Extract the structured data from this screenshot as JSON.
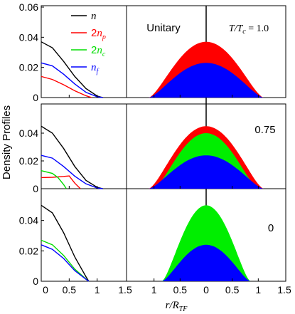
{
  "figure": {
    "ylabel": "Density Profiles",
    "xlabel": "r/R",
    "xlabel_sub": "TF",
    "panel_labels": {
      "top": "T/T",
      "top_sub": "c",
      "top_value": " = 1.0",
      "mid": "0.75",
      "bot": "0",
      "unitary": "Unitary"
    },
    "legend": [
      {
        "label": "n",
        "sub": "",
        "pre": "",
        "color": "#000000"
      },
      {
        "label": "n",
        "sub": "p",
        "pre": "2",
        "color": "#ff0000"
      },
      {
        "label": "n",
        "sub": "c",
        "pre": "2",
        "color": "#00dd00"
      },
      {
        "label": "n",
        "sub": "f",
        "pre": "",
        "color": "#0000ff"
      }
    ],
    "colors": {
      "n": "#000000",
      "np": "#ff0000",
      "nc": "#00ee00",
      "nf": "#0000ff"
    }
  },
  "chart_data": [
    {
      "type": "line",
      "panel": "left-top",
      "title": "T/Tc = 1.0",
      "xlim": [
        0,
        1.5
      ],
      "ylim": [
        0,
        0.06
      ],
      "xticks": [
        "0",
        "0.5",
        "1",
        "1.5"
      ],
      "yticks": [
        "0",
        "0.02",
        "0.04",
        "0.06"
      ],
      "series": [
        {
          "name": "n",
          "color": "#000000",
          "x": [
            0,
            0.2,
            0.4,
            0.6,
            0.8,
            1.0,
            1.1
          ],
          "y": [
            0.037,
            0.033,
            0.024,
            0.014,
            0.006,
            0.001,
            0
          ]
        },
        {
          "name": "2np",
          "color": "#ff0000",
          "x": [
            0,
            0.2,
            0.4,
            0.6,
            0.8,
            0.9
          ],
          "y": [
            0.014,
            0.012,
            0.0085,
            0.0045,
            0.0012,
            0
          ]
        },
        {
          "name": "nf",
          "color": "#0000ff",
          "x": [
            0,
            0.2,
            0.4,
            0.6,
            0.8,
            1.0,
            1.1
          ],
          "y": [
            0.023,
            0.021,
            0.0155,
            0.009,
            0.0035,
            0.0005,
            0
          ]
        }
      ]
    },
    {
      "type": "area",
      "panel": "right-top",
      "xlim": [
        -1.5,
        1.5
      ],
      "ylim": [
        0,
        0.06
      ],
      "xticks": [
        "1.5",
        "1",
        "0.5",
        "0",
        "0.5",
        "1",
        "1.5"
      ],
      "series": [
        {
          "name": "np-fill",
          "color": "#ff0000",
          "peak": 0.037,
          "width": 1.1
        },
        {
          "name": "nf-fill",
          "color": "#0000ff",
          "peak": 0.023,
          "width": 1.1
        }
      ]
    },
    {
      "type": "line",
      "panel": "left-mid",
      "title": "0.75",
      "xlim": [
        0,
        1.5
      ],
      "ylim": [
        0,
        0.06
      ],
      "yticks": [
        "0",
        "0.02",
        "0.04"
      ],
      "series": [
        {
          "name": "n",
          "color": "#000000",
          "x": [
            0,
            0.2,
            0.4,
            0.6,
            0.8,
            1.0,
            1.1
          ],
          "y": [
            0.045,
            0.04,
            0.029,
            0.016,
            0.006,
            0.001,
            0
          ]
        },
        {
          "name": "2np",
          "color": "#ff0000",
          "x": [
            0,
            0.2,
            0.4,
            0.5,
            0.6,
            0.7
          ],
          "y": [
            0.008,
            0.0082,
            0.0088,
            0.0092,
            0.004,
            0
          ]
        },
        {
          "name": "2nc",
          "color": "#00dd00",
          "x": [
            0,
            0.2,
            0.3,
            0.4,
            0.45
          ],
          "y": [
            0.013,
            0.011,
            0.008,
            0.003,
            0
          ]
        },
        {
          "name": "nf",
          "color": "#0000ff",
          "x": [
            0,
            0.2,
            0.4,
            0.6,
            0.8,
            1.0,
            1.1
          ],
          "y": [
            0.024,
            0.022,
            0.016,
            0.009,
            0.0035,
            0.0005,
            0
          ]
        }
      ]
    },
    {
      "type": "area",
      "panel": "right-mid",
      "xlim": [
        -1.5,
        1.5
      ],
      "ylim": [
        0,
        0.06
      ],
      "series": [
        {
          "name": "np-fill",
          "color": "#ff0000",
          "peak": 0.045,
          "width": 1.1
        },
        {
          "name": "nc-fill",
          "color": "#00ee00",
          "peak": 0.04,
          "width": 1.0
        },
        {
          "name": "nf-fill",
          "color": "#0000ff",
          "peak": 0.024,
          "width": 1.1
        }
      ]
    },
    {
      "type": "line",
      "panel": "left-bot",
      "title": "0",
      "xlim": [
        0,
        1.5
      ],
      "ylim": [
        0,
        0.06
      ],
      "xticks": [
        "0",
        "0.5",
        "1",
        "1.5"
      ],
      "yticks": [
        "0",
        "0.02",
        "0.04"
      ],
      "series": [
        {
          "name": "n",
          "color": "#000000",
          "x": [
            0,
            0.2,
            0.4,
            0.6,
            0.8,
            0.85
          ],
          "y": [
            0.05,
            0.045,
            0.032,
            0.016,
            0.003,
            0
          ]
        },
        {
          "name": "2nc",
          "color": "#00dd00",
          "x": [
            0,
            0.2,
            0.4,
            0.6,
            0.8,
            0.85
          ],
          "y": [
            0.027,
            0.024,
            0.017,
            0.008,
            0.0015,
            0
          ]
        },
        {
          "name": "nf",
          "color": "#0000ff",
          "x": [
            0,
            0.2,
            0.4,
            0.6,
            0.8,
            0.85
          ],
          "y": [
            0.024,
            0.021,
            0.015,
            0.007,
            0.0013,
            0
          ]
        }
      ]
    },
    {
      "type": "area",
      "panel": "right-bot",
      "xlim": [
        -1.5,
        1.5
      ],
      "ylim": [
        0,
        0.06
      ],
      "series": [
        {
          "name": "nc-fill",
          "color": "#00ee00",
          "peak": 0.05,
          "width": 0.85
        },
        {
          "name": "nf-fill",
          "color": "#0000ff",
          "peak": 0.024,
          "width": 0.85
        }
      ]
    }
  ]
}
